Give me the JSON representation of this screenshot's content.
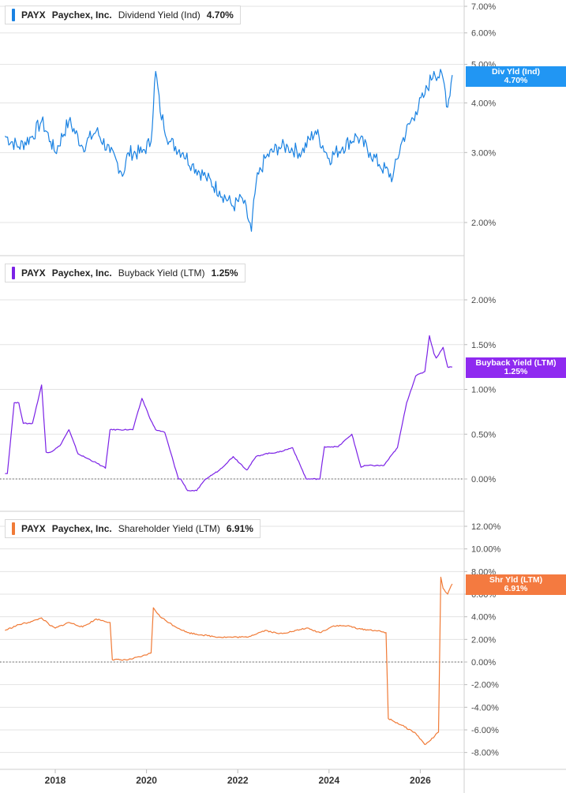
{
  "colors": {
    "dividend": "#1a82e2",
    "buyback": "#7b22e6",
    "shareholder": "#f07a36",
    "grid": "#e3e3e3",
    "zero": "#555555"
  },
  "panels": [
    {
      "ticker": "PAYX",
      "company": "Paychex, Inc.",
      "metric": "Dividend Yield (Ind)",
      "value": "4.70%",
      "flag_line1": "Div Yld (Ind)",
      "flag_line2": "4.70%",
      "yticks": [
        "7.00%",
        "6.00%",
        "5.00%",
        "4.00%",
        "3.00%",
        "2.00%"
      ]
    },
    {
      "ticker": "PAYX",
      "company": "Paychex, Inc.",
      "metric": "Buyback Yield (LTM)",
      "value": "1.25%",
      "flag_line1": "Buyback Yield (LTM)",
      "flag_line2": "1.25%",
      "yticks": [
        "2.00%",
        "1.50%",
        "1.00%",
        "0.50%",
        "0.00%"
      ]
    },
    {
      "ticker": "PAYX",
      "company": "Paychex, Inc.",
      "metric": "Shareholder Yield (LTM)",
      "value": "6.91%",
      "flag_line1": "Shr Yld (LTM)",
      "flag_line2": "6.91%",
      "yticks": [
        "12.00%",
        "10.00%",
        "8.00%",
        "6.00%",
        "4.00%",
        "2.00%",
        "0.00%",
        "-2.00%",
        "-4.00%",
        "-6.00%",
        "-8.00%"
      ]
    }
  ],
  "xticks": [
    "2018",
    "2020",
    "2022",
    "2024",
    "2026"
  ],
  "chart_data": [
    {
      "type": "line",
      "title": "PAYX Paychex, Inc. Dividend Yield (Ind) 4.70%",
      "series": [
        {
          "name": "Dividend Yield (Ind)",
          "unit": "%",
          "x": [
            2016.9,
            2017.2,
            2017.5,
            2017.7,
            2017.9,
            2018.0,
            2018.3,
            2018.6,
            2018.9,
            2019.2,
            2019.5,
            2019.6,
            2019.9,
            2020.1,
            2020.2,
            2020.3,
            2020.5,
            2020.8,
            2021.0,
            2021.3,
            2021.6,
            2021.9,
            2022.1,
            2022.3,
            2022.4,
            2022.6,
            2022.9,
            2023.1,
            2023.4,
            2023.7,
            2024.0,
            2024.3,
            2024.6,
            2024.9,
            2025.1,
            2025.4,
            2025.6,
            2025.9,
            2026.1,
            2026.3,
            2026.5,
            2026.6,
            2026.7
          ],
          "values": [
            3.3,
            3.1,
            3.3,
            3.6,
            3.2,
            3.0,
            3.6,
            3.1,
            3.4,
            3.0,
            2.65,
            3.0,
            3.0,
            3.2,
            4.8,
            3.8,
            3.2,
            3.0,
            2.8,
            2.6,
            2.4,
            2.2,
            2.3,
            1.9,
            2.5,
            2.9,
            3.1,
            3.1,
            3.0,
            3.4,
            2.9,
            3.1,
            3.3,
            3.0,
            2.8,
            2.6,
            3.2,
            3.8,
            4.2,
            4.8,
            4.6,
            3.9,
            4.7
          ]
        }
      ],
      "ylim": [
        1.8,
        7.2
      ],
      "yscale": "log"
    },
    {
      "type": "line",
      "title": "PAYX Paychex, Inc. Buyback Yield (LTM) 1.25%",
      "series": [
        {
          "name": "Buyback Yield (LTM)",
          "unit": "%",
          "x": [
            2016.9,
            2016.95,
            2017.1,
            2017.2,
            2017.3,
            2017.5,
            2017.7,
            2017.8,
            2017.9,
            2018.1,
            2018.3,
            2018.5,
            2018.7,
            2018.9,
            2019.1,
            2019.2,
            2019.4,
            2019.7,
            2019.9,
            2020.1,
            2020.2,
            2020.4,
            2020.7,
            2020.75,
            2020.9,
            2021.1,
            2021.3,
            2021.6,
            2021.9,
            2022.2,
            2022.4,
            2022.6,
            2022.9,
            2023.2,
            2023.5,
            2023.8,
            2023.9,
            2024.2,
            2024.5,
            2024.7,
            2024.8,
            2025.2,
            2025.5,
            2025.7,
            2025.9,
            2026.1,
            2026.2,
            2026.3,
            2026.35,
            2026.5,
            2026.6,
            2026.7
          ],
          "values": [
            0.06,
            0.06,
            0.85,
            0.85,
            0.62,
            0.62,
            1.05,
            0.3,
            0.3,
            0.37,
            0.55,
            0.28,
            0.23,
            0.18,
            0.12,
            0.55,
            0.55,
            0.55,
            0.9,
            0.65,
            0.55,
            0.52,
            0.0,
            0.0,
            -0.13,
            -0.13,
            0.0,
            0.1,
            0.25,
            0.1,
            0.25,
            0.28,
            0.3,
            0.35,
            0.0,
            0.0,
            0.36,
            0.36,
            0.5,
            0.13,
            0.15,
            0.15,
            0.35,
            0.85,
            1.15,
            1.2,
            1.6,
            1.4,
            1.35,
            1.47,
            1.25,
            1.25
          ]
        }
      ],
      "ylim": [
        -0.2,
        2.1
      ]
    },
    {
      "type": "line",
      "title": "PAYX Paychex, Inc. Shareholder Yield (LTM) 6.91%",
      "series": [
        {
          "name": "Shareholder Yield (LTM)",
          "unit": "%",
          "x": [
            2016.9,
            2017.2,
            2017.5,
            2017.7,
            2017.9,
            2018.0,
            2018.3,
            2018.6,
            2018.9,
            2019.2,
            2019.25,
            2019.6,
            2019.9,
            2020.1,
            2020.15,
            2020.3,
            2020.6,
            2020.9,
            2021.2,
            2021.6,
            2021.9,
            2022.2,
            2022.6,
            2022.9,
            2023.2,
            2023.5,
            2023.8,
            2024.1,
            2024.4,
            2024.7,
            2025.0,
            2025.25,
            2025.3,
            2025.6,
            2025.9,
            2026.1,
            2026.2,
            2026.4,
            2026.45,
            2026.5,
            2026.6,
            2026.7
          ],
          "values": [
            2.8,
            3.3,
            3.6,
            3.9,
            3.2,
            3.0,
            3.5,
            3.1,
            3.8,
            3.5,
            0.2,
            0.2,
            0.5,
            0.8,
            4.8,
            4.0,
            3.2,
            2.6,
            2.4,
            2.2,
            2.2,
            2.2,
            2.8,
            2.5,
            2.7,
            3.0,
            2.6,
            3.2,
            3.2,
            2.9,
            2.8,
            2.6,
            -5.0,
            -5.6,
            -6.3,
            -7.3,
            -7.0,
            -6.2,
            7.5,
            6.5,
            6.0,
            6.91
          ]
        }
      ],
      "ylim": [
        -8.8,
        12.8
      ]
    }
  ]
}
